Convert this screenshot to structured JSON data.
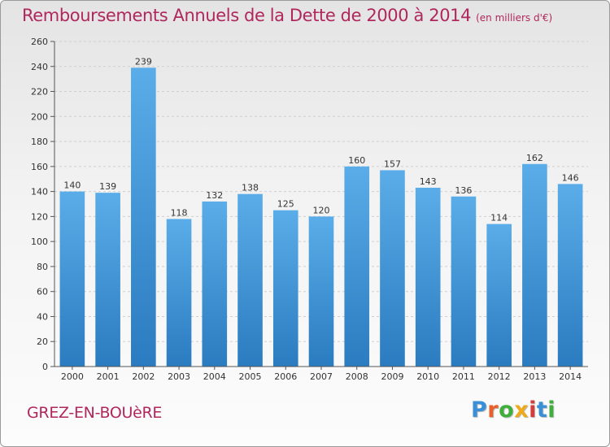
{
  "chart_data": {
    "type": "bar",
    "title": "Remboursements Annuels de la Dette de 2000 à 2014",
    "subtitle": "(en milliers d'€)",
    "categories": [
      "2000",
      "2001",
      "2002",
      "2003",
      "2004",
      "2005",
      "2006",
      "2007",
      "2008",
      "2009",
      "2010",
      "2011",
      "2012",
      "2013",
      "2014"
    ],
    "values": [
      140,
      139,
      239,
      118,
      132,
      138,
      125,
      120,
      160,
      157,
      143,
      136,
      114,
      162,
      146
    ],
    "ylim": [
      0,
      260
    ],
    "yticks": [
      0,
      20,
      40,
      60,
      80,
      100,
      120,
      140,
      160,
      180,
      200,
      220,
      240,
      260
    ],
    "grid": true,
    "bar_color": "#4a9ee0"
  },
  "footer": {
    "place": "GREZ-EN-BOUèRE",
    "logo_text": "Proxiti"
  }
}
